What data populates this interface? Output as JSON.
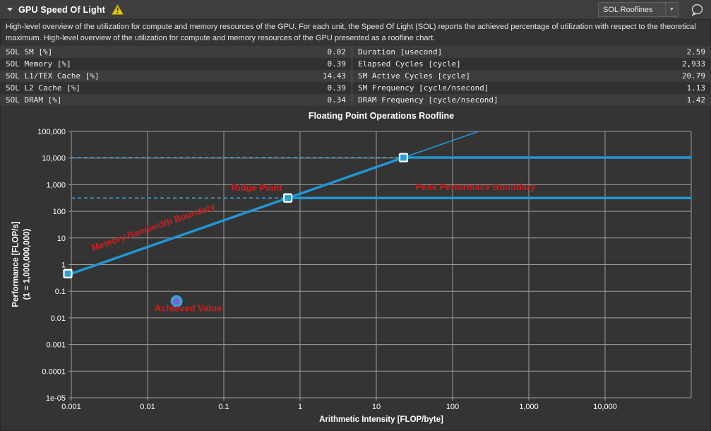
{
  "header": {
    "title": "GPU Speed Of Light",
    "dropdown_value": "SOL Rooflines",
    "icons": [
      "collapse-chevron-icon",
      "warning-icon",
      "dropdown-arrow-icon",
      "comment-icon"
    ],
    "colors": {
      "warning": "#e9c714",
      "strip_bg": "#3e3e3e"
    }
  },
  "description": {
    "text": "High-level overview of the utilization for compute and memory resources of the GPU. For each unit, the Speed Of Light (SOL) reports the achieved percentage of utilization with respect to the theoretical maximum. High-level overview of the utilization for compute and memory resources of the GPU presented as a roofline chart."
  },
  "metrics": {
    "left": [
      {
        "label": "SOL SM [%]",
        "value": "0.02"
      },
      {
        "label": "SOL Memory [%]",
        "value": "0.39"
      },
      {
        "label": "SOL L1/TEX Cache [%]",
        "value": "14.43"
      },
      {
        "label": "SOL L2 Cache [%]",
        "value": "0.39"
      },
      {
        "label": "SOL DRAM [%]",
        "value": "0.34"
      }
    ],
    "right": [
      {
        "label": "Duration [usecond]",
        "value": "2.59"
      },
      {
        "label": "Elapsed Cycles [cycle]",
        "value": "2,933"
      },
      {
        "label": "SM Active Cycles [cycle]",
        "value": "20.79"
      },
      {
        "label": "SM Frequency [cycle/nsecond]",
        "value": "1.13"
      },
      {
        "label": "DRAM Frequency [cycle/nsecond]",
        "value": "1.42"
      }
    ]
  },
  "chart_data": {
    "type": "line",
    "title": "Floating Point Operations Roofline",
    "xlabel": "Arithmetic Intensity [FLOP/byte]",
    "ylabel_line1": "Performance [FLOP/s]",
    "ylabel_line2": "(1 = 1,000,000,000)",
    "xmin": 0.001,
    "ymax": 100000,
    "ylim": [
      1e-05,
      100000
    ],
    "xlim": [
      0.001,
      140000
    ],
    "grid": true,
    "x_ticks": [
      {
        "v": 0.001,
        "label": "0.001"
      },
      {
        "v": 0.01,
        "label": "0.01"
      },
      {
        "v": 0.1,
        "label": "0.1"
      },
      {
        "v": 1,
        "label": "1"
      },
      {
        "v": 10,
        "label": "10"
      },
      {
        "v": 100,
        "label": "100"
      },
      {
        "v": 1000,
        "label": "1,000"
      },
      {
        "v": 10000,
        "label": "10,000"
      }
    ],
    "y_ticks": [
      {
        "v": 100000,
        "label": "100,000"
      },
      {
        "v": 10000,
        "label": "10,000"
      },
      {
        "v": 1000,
        "label": "1,000"
      },
      {
        "v": 100,
        "label": "100"
      },
      {
        "v": 10,
        "label": "10"
      },
      {
        "v": 1,
        "label": "1"
      },
      {
        "v": 0.1,
        "label": "0.1"
      },
      {
        "v": 0.01,
        "label": "0.01"
      },
      {
        "v": 0.001,
        "label": "0.001"
      },
      {
        "v": 0.0001,
        "label": "0.0001"
      },
      {
        "v": 1e-05,
        "label": "1e-05"
      }
    ],
    "memory_bandwidth": 458,
    "rooflines": [
      {
        "name": "double-precision-peak",
        "peak": 316
      },
      {
        "name": "single-precision-peak",
        "peak": 10400
      }
    ],
    "achieved_value": {
      "x": 0.024,
      "y": 0.042
    },
    "annotations": [
      {
        "text": "Memory Bandwidth Boundary",
        "x": 0.0123,
        "y": 20,
        "angle": -19
      },
      {
        "text": "Ridge Point",
        "x": 0.27,
        "y": 590,
        "angle": 0
      },
      {
        "text": "Peak Performace Boundary",
        "x": 200,
        "y": 620,
        "angle": 0
      },
      {
        "text": "Achieved Value",
        "x": 0.034,
        "y": 0.018,
        "angle": 0
      }
    ],
    "colors": {
      "line": "#2196d3",
      "dashed": "#45a5da",
      "annotation": "#cc1f1f",
      "marker_fill": "#2e9fd8",
      "marker_border": "#ffffff",
      "achieved_outer": "#35a2dd",
      "achieved_inner": "#7a63cf",
      "grid": "#9d9d9d",
      "tick_text": "#ffffff"
    }
  }
}
